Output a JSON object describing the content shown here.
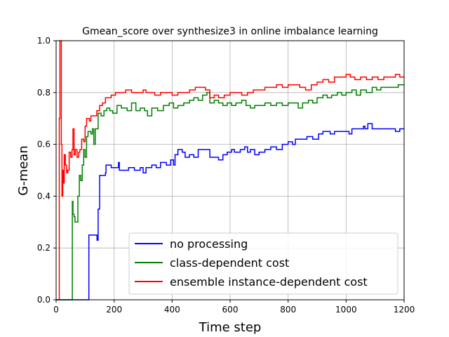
{
  "chart_data": {
    "type": "line",
    "title": "Gmean_score over synthesize3 in online imbalance learning",
    "xlabel": "Time step",
    "ylabel": "G-mean",
    "xlim": [
      0,
      1200
    ],
    "ylim": [
      0.0,
      1.0
    ],
    "xticks": [
      0,
      200,
      400,
      600,
      800,
      1000,
      1200
    ],
    "yticks": [
      0.0,
      0.2,
      0.4,
      0.6,
      0.8,
      1.0
    ],
    "xtick_labels": [
      "0",
      "200",
      "400",
      "600",
      "800",
      "1000",
      "1200"
    ],
    "ytick_labels": [
      "0.0",
      "0.2",
      "0.4",
      "0.6",
      "0.8",
      "1.0"
    ],
    "grid": true,
    "legend_position": "lower-right",
    "series": [
      {
        "name": "no processing",
        "color": "#0000ff",
        "points": [
          [
            0,
            0
          ],
          [
            112,
            0
          ],
          [
            113,
            0.25
          ],
          [
            140,
            0.25
          ],
          [
            141,
            0.23
          ],
          [
            145,
            0.35
          ],
          [
            150,
            0.48
          ],
          [
            170,
            0.49
          ],
          [
            172,
            0.52
          ],
          [
            190,
            0.51
          ],
          [
            210,
            0.51
          ],
          [
            215,
            0.53
          ],
          [
            218,
            0.5
          ],
          [
            250,
            0.51
          ],
          [
            270,
            0.5
          ],
          [
            290,
            0.51
          ],
          [
            300,
            0.49
          ],
          [
            310,
            0.51
          ],
          [
            330,
            0.52
          ],
          [
            345,
            0.51
          ],
          [
            360,
            0.53
          ],
          [
            380,
            0.52
          ],
          [
            395,
            0.54
          ],
          [
            405,
            0.52
          ],
          [
            410,
            0.56
          ],
          [
            420,
            0.58
          ],
          [
            435,
            0.57
          ],
          [
            445,
            0.55
          ],
          [
            460,
            0.56
          ],
          [
            475,
            0.55
          ],
          [
            490,
            0.58
          ],
          [
            520,
            0.58
          ],
          [
            530,
            0.55
          ],
          [
            545,
            0.55
          ],
          [
            560,
            0.54
          ],
          [
            575,
            0.56
          ],
          [
            590,
            0.57
          ],
          [
            605,
            0.58
          ],
          [
            615,
            0.57
          ],
          [
            635,
            0.58
          ],
          [
            650,
            0.59
          ],
          [
            660,
            0.57
          ],
          [
            670,
            0.58
          ],
          [
            685,
            0.56
          ],
          [
            700,
            0.57
          ],
          [
            720,
            0.58
          ],
          [
            740,
            0.59
          ],
          [
            760,
            0.58
          ],
          [
            780,
            0.6
          ],
          [
            800,
            0.61
          ],
          [
            815,
            0.6
          ],
          [
            825,
            0.62
          ],
          [
            845,
            0.62
          ],
          [
            865,
            0.63
          ],
          [
            885,
            0.62
          ],
          [
            905,
            0.64
          ],
          [
            920,
            0.65
          ],
          [
            945,
            0.64
          ],
          [
            960,
            0.65
          ],
          [
            985,
            0.65
          ],
          [
            1000,
            0.65
          ],
          [
            1010,
            0.64
          ],
          [
            1020,
            0.66
          ],
          [
            1040,
            0.66
          ],
          [
            1060,
            0.67
          ],
          [
            1065,
            0.66
          ],
          [
            1075,
            0.68
          ],
          [
            1090,
            0.66
          ],
          [
            1110,
            0.66
          ],
          [
            1130,
            0.66
          ],
          [
            1150,
            0.66
          ],
          [
            1170,
            0.65
          ],
          [
            1185,
            0.66
          ],
          [
            1200,
            0.66
          ]
        ]
      },
      {
        "name": "class-dependent cost",
        "color": "#008000",
        "points": [
          [
            0,
            0
          ],
          [
            55,
            0
          ],
          [
            56,
            0.38
          ],
          [
            58,
            0.33
          ],
          [
            62,
            0.32
          ],
          [
            65,
            0.3
          ],
          [
            72,
            0.3
          ],
          [
            75,
            0.4
          ],
          [
            80,
            0.48
          ],
          [
            85,
            0.46
          ],
          [
            90,
            0.52
          ],
          [
            95,
            0.58
          ],
          [
            100,
            0.55
          ],
          [
            105,
            0.63
          ],
          [
            110,
            0.65
          ],
          [
            120,
            0.64
          ],
          [
            125,
            0.66
          ],
          [
            130,
            0.6
          ],
          [
            135,
            0.66
          ],
          [
            145,
            0.72
          ],
          [
            155,
            0.71
          ],
          [
            165,
            0.73
          ],
          [
            175,
            0.74
          ],
          [
            185,
            0.73
          ],
          [
            195,
            0.72
          ],
          [
            210,
            0.75
          ],
          [
            225,
            0.74
          ],
          [
            245,
            0.73
          ],
          [
            260,
            0.76
          ],
          [
            275,
            0.73
          ],
          [
            290,
            0.74
          ],
          [
            305,
            0.73
          ],
          [
            315,
            0.71
          ],
          [
            330,
            0.74
          ],
          [
            350,
            0.73
          ],
          [
            370,
            0.75
          ],
          [
            390,
            0.76
          ],
          [
            405,
            0.74
          ],
          [
            420,
            0.75
          ],
          [
            440,
            0.76
          ],
          [
            460,
            0.77
          ],
          [
            475,
            0.78
          ],
          [
            490,
            0.77
          ],
          [
            505,
            0.79
          ],
          [
            520,
            0.8
          ],
          [
            530,
            0.76
          ],
          [
            545,
            0.77
          ],
          [
            560,
            0.76
          ],
          [
            575,
            0.75
          ],
          [
            590,
            0.76
          ],
          [
            605,
            0.75
          ],
          [
            620,
            0.76
          ],
          [
            640,
            0.77
          ],
          [
            655,
            0.75
          ],
          [
            670,
            0.74
          ],
          [
            685,
            0.75
          ],
          [
            700,
            0.75
          ],
          [
            720,
            0.76
          ],
          [
            740,
            0.75
          ],
          [
            760,
            0.76
          ],
          [
            780,
            0.75
          ],
          [
            800,
            0.76
          ],
          [
            820,
            0.76
          ],
          [
            835,
            0.74
          ],
          [
            850,
            0.76
          ],
          [
            870,
            0.77
          ],
          [
            885,
            0.76
          ],
          [
            900,
            0.78
          ],
          [
            920,
            0.79
          ],
          [
            935,
            0.78
          ],
          [
            950,
            0.79
          ],
          [
            970,
            0.8
          ],
          [
            985,
            0.79
          ],
          [
            1000,
            0.8
          ],
          [
            1020,
            0.81
          ],
          [
            1035,
            0.79
          ],
          [
            1050,
            0.81
          ],
          [
            1070,
            0.8
          ],
          [
            1090,
            0.82
          ],
          [
            1105,
            0.81
          ],
          [
            1120,
            0.82
          ],
          [
            1140,
            0.82
          ],
          [
            1160,
            0.82
          ],
          [
            1180,
            0.83
          ],
          [
            1200,
            0.83
          ]
        ]
      },
      {
        "name": "ensemble instance-dependent cost",
        "color": "#ff0000",
        "points": [
          [
            0,
            0
          ],
          [
            10,
            0
          ],
          [
            11,
            0.7
          ],
          [
            13,
            1.0
          ],
          [
            16,
            1.0
          ],
          [
            18,
            0.6
          ],
          [
            20,
            0.4
          ],
          [
            23,
            0.5
          ],
          [
            26,
            0.45
          ],
          [
            28,
            0.56
          ],
          [
            32,
            0.52
          ],
          [
            36,
            0.49
          ],
          [
            40,
            0.5
          ],
          [
            45,
            0.57
          ],
          [
            50,
            0.55
          ],
          [
            55,
            0.58
          ],
          [
            58,
            0.66
          ],
          [
            62,
            0.56
          ],
          [
            66,
            0.58
          ],
          [
            72,
            0.55
          ],
          [
            78,
            0.57
          ],
          [
            82,
            0.58
          ],
          [
            88,
            0.62
          ],
          [
            95,
            0.61
          ],
          [
            100,
            0.67
          ],
          [
            105,
            0.7
          ],
          [
            115,
            0.69
          ],
          [
            120,
            0.71
          ],
          [
            125,
            0.71
          ],
          [
            135,
            0.71
          ],
          [
            140,
            0.73
          ],
          [
            150,
            0.75
          ],
          [
            160,
            0.76
          ],
          [
            170,
            0.78
          ],
          [
            180,
            0.78
          ],
          [
            190,
            0.79
          ],
          [
            205,
            0.8
          ],
          [
            220,
            0.8
          ],
          [
            240,
            0.81
          ],
          [
            260,
            0.8
          ],
          [
            280,
            0.8
          ],
          [
            300,
            0.81
          ],
          [
            310,
            0.8
          ],
          [
            320,
            0.8
          ],
          [
            340,
            0.79
          ],
          [
            360,
            0.8
          ],
          [
            380,
            0.8
          ],
          [
            400,
            0.79
          ],
          [
            420,
            0.8
          ],
          [
            440,
            0.8
          ],
          [
            460,
            0.81
          ],
          [
            480,
            0.82
          ],
          [
            500,
            0.82
          ],
          [
            515,
            0.81
          ],
          [
            530,
            0.78
          ],
          [
            545,
            0.79
          ],
          [
            560,
            0.78
          ],
          [
            580,
            0.79
          ],
          [
            600,
            0.8
          ],
          [
            620,
            0.8
          ],
          [
            640,
            0.79
          ],
          [
            660,
            0.8
          ],
          [
            680,
            0.81
          ],
          [
            700,
            0.81
          ],
          [
            720,
            0.82
          ],
          [
            740,
            0.82
          ],
          [
            760,
            0.83
          ],
          [
            780,
            0.82
          ],
          [
            800,
            0.83
          ],
          [
            820,
            0.83
          ],
          [
            840,
            0.82
          ],
          [
            860,
            0.81
          ],
          [
            880,
            0.83
          ],
          [
            900,
            0.84
          ],
          [
            920,
            0.85
          ],
          [
            940,
            0.84
          ],
          [
            960,
            0.86
          ],
          [
            980,
            0.86
          ],
          [
            1000,
            0.87
          ],
          [
            1015,
            0.86
          ],
          [
            1030,
            0.85
          ],
          [
            1050,
            0.86
          ],
          [
            1070,
            0.85
          ],
          [
            1090,
            0.86
          ],
          [
            1110,
            0.85
          ],
          [
            1130,
            0.86
          ],
          [
            1150,
            0.86
          ],
          [
            1170,
            0.87
          ],
          [
            1185,
            0.86
          ],
          [
            1200,
            0.86
          ]
        ]
      }
    ]
  }
}
